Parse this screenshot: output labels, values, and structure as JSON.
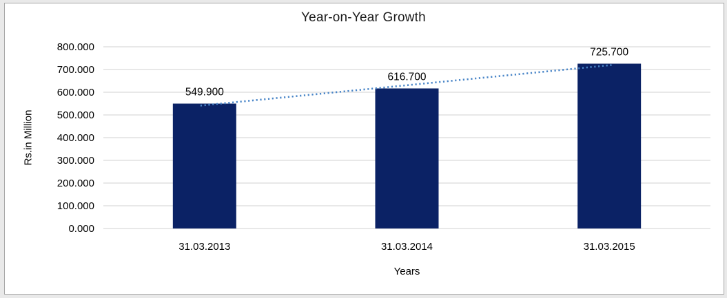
{
  "page": {
    "background_color": "#e9e9e9",
    "frame_background": "#ffffff",
    "frame_border_color": "#a6a6a6"
  },
  "chart_data": {
    "type": "bar",
    "title": "Year-on-Year Growth",
    "xlabel": "Years",
    "ylabel": "Rs.in Million",
    "categories": [
      "31.03.2013",
      "31.03.2014",
      "31.03.2015"
    ],
    "values": [
      549.9,
      616.7,
      725.7
    ],
    "value_labels": [
      "549.900",
      "616.700",
      "725.700"
    ],
    "ylim": [
      0,
      800
    ],
    "ytick_step": 100,
    "ytick_labels": [
      "0.000",
      "100.000",
      "200.000",
      "300.000",
      "400.000",
      "500.000",
      "600.000",
      "700.000",
      "800.000"
    ],
    "grid": true,
    "legend": "none",
    "colors": {
      "bar": "#0b2265",
      "trendline": "#4a86c8",
      "gridline": "#d9d9d9",
      "text": "#000000"
    },
    "trendline": {
      "type": "linear",
      "style": "dotted",
      "endpoint_values": [
        542.9,
        718.7
      ]
    }
  }
}
